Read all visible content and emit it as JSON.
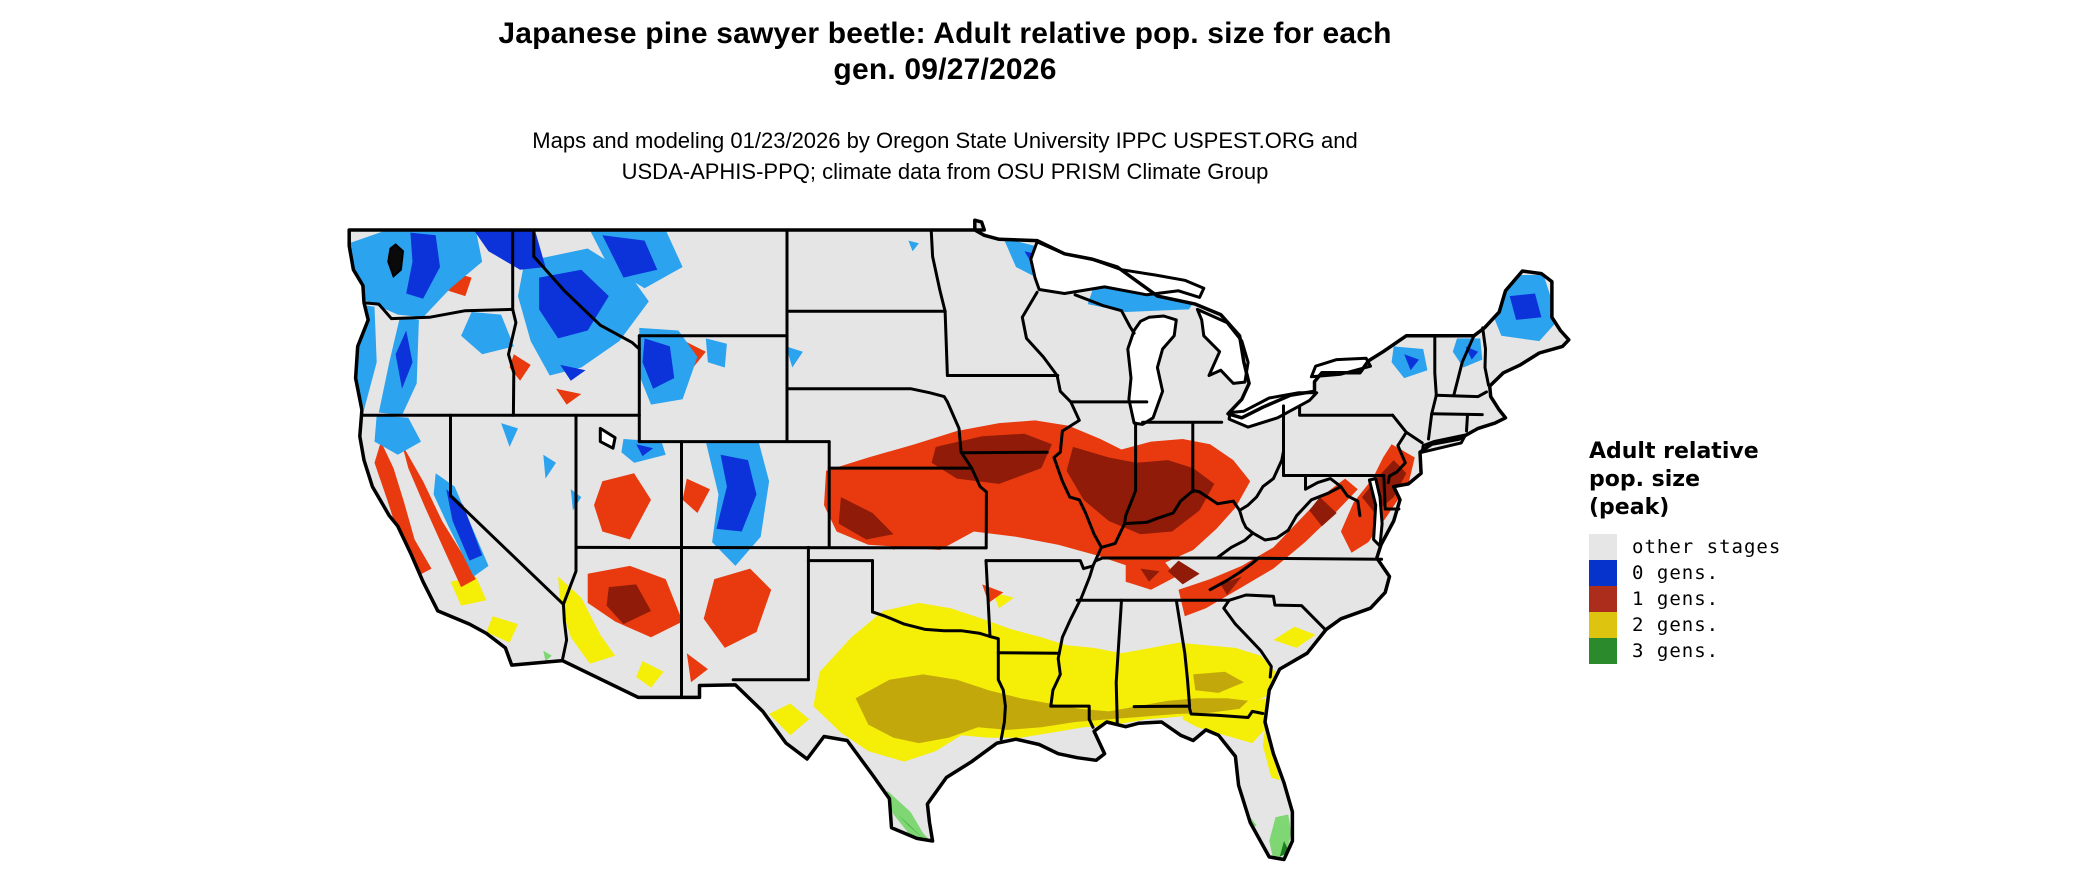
{
  "title": {
    "line1": "Japanese pine sawyer beetle: Adult relative pop. size for each",
    "line2": "gen. 09/27/2026"
  },
  "subtitle": {
    "line1": "Maps and modeling 01/23/2026 by Oregon State University IPPC USPEST.ORG and",
    "line2": "USDA-APHIS-PPQ; climate data from OSU PRISM Climate Group"
  },
  "legend": {
    "title_lines": [
      "Adult relative",
      "pop. size",
      "(peak)"
    ],
    "items": [
      {
        "label": "other stages",
        "color": "#e6e6e6"
      },
      {
        "label": "0 gens.",
        "color": "#0533cc"
      },
      {
        "label": "1 gens.",
        "color": "#ad2d1c"
      },
      {
        "label": "2 gens.",
        "color": "#ddc40f"
      },
      {
        "label": "3 gens.",
        "color": "#2b8a2b"
      }
    ]
  },
  "map": {
    "palette": {
      "land": "#e5e5e5",
      "water": "#ffffff",
      "border": "#000000",
      "sound": "#0a0a0a",
      "g0L": "#2ba3ef",
      "g0D": "#0b33d9",
      "g1L": "#e83a0e",
      "g1D": "#8f1b08",
      "g2L": "#f5ee06",
      "g2D": "#c2a80b",
      "g3L": "#7fd774",
      "g3D": "#1e7d1e"
    }
  }
}
